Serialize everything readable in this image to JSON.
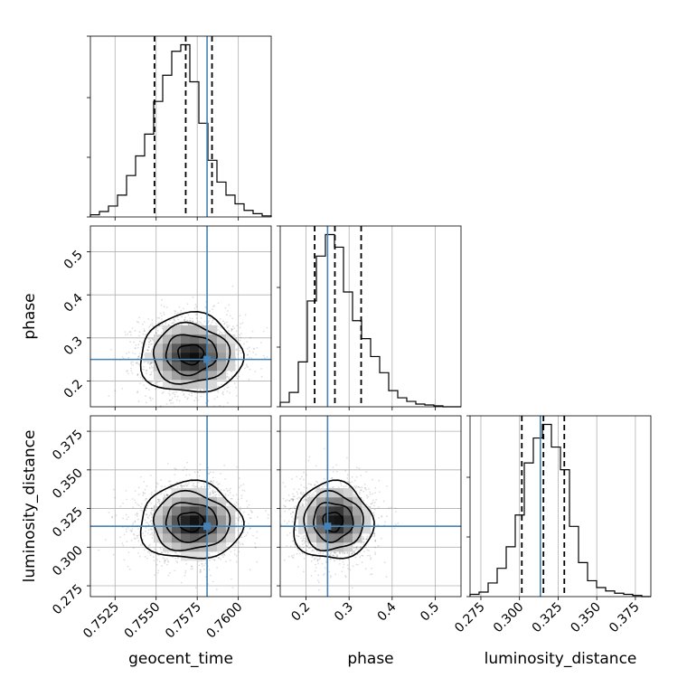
{
  "chart_data": {
    "type": "corner",
    "parameters": [
      "geocent_time",
      "phase",
      "luminosity_distance"
    ],
    "labels": {
      "geocent_time": "geocent_time",
      "phase": "phase",
      "luminosity_distance": "luminosity_distance"
    },
    "ranges": {
      "geocent_time": [
        0.751,
        0.762
      ],
      "phase": [
        0.14,
        0.56
      ],
      "luminosity_distance": [
        0.268,
        0.385
      ]
    },
    "x_ticks": {
      "geocent_time": [
        "0.7525",
        "0.7550",
        "0.7575",
        "0.7600"
      ],
      "phase": [
        "0.2",
        "0.3",
        "0.4",
        "0.5"
      ],
      "luminosity_distance": [
        "0.275",
        "0.300",
        "0.325",
        "0.350",
        "0.375"
      ]
    },
    "y_ticks": {
      "phase": [
        "0.2",
        "0.3",
        "0.4",
        "0.5"
      ],
      "luminosity_distance": [
        "0.275",
        "0.300",
        "0.325",
        "0.350",
        "0.375"
      ]
    },
    "truths": {
      "geocent_time": 0.7581,
      "phase": 0.25,
      "luminosity_distance": 0.3135
    },
    "quantiles": {
      "geocent_time": [
        0.7549,
        0.7568,
        0.7584
      ],
      "phase": [
        0.22,
        0.267,
        0.328
      ],
      "luminosity_distance": [
        0.3015,
        0.3155,
        0.329
      ]
    },
    "histograms": {
      "geocent_time": {
        "bin_edges": [
          0.751,
          0.75155,
          0.7521,
          0.75265,
          0.7532,
          0.75375,
          0.7543,
          0.75485,
          0.7554,
          0.75595,
          0.7565,
          0.75705,
          0.7576,
          0.75815,
          0.7587,
          0.75925,
          0.7598,
          0.76035,
          0.7609,
          0.76145,
          0.762
        ],
        "counts": [
          2,
          5,
          10,
          20,
          38,
          56,
          76,
          106,
          130,
          152,
          158,
          124,
          86,
          52,
          32,
          20,
          12,
          6,
          3,
          1
        ]
      },
      "phase": {
        "bin_edges": [
          0.14,
          0.161,
          0.182,
          0.203,
          0.224,
          0.245,
          0.266,
          0.287,
          0.308,
          0.329,
          0.35,
          0.371,
          0.392,
          0.413,
          0.434,
          0.455,
          0.476,
          0.497,
          0.518,
          0.539,
          0.56
        ],
        "counts": [
          5,
          16,
          50,
          118,
          168,
          192,
          178,
          128,
          96,
          76,
          56,
          38,
          18,
          10,
          6,
          3,
          2,
          1,
          0,
          0
        ],
        "counts_visible_max": 192
      },
      "luminosity_distance": {
        "bin_edges": [
          0.268,
          0.27385,
          0.2797,
          0.28555,
          0.2914,
          0.29725,
          0.3031,
          0.30895,
          0.3148,
          0.32065,
          0.3265,
          0.33235,
          0.3382,
          0.34405,
          0.3499,
          0.35575,
          0.3616,
          0.36745,
          0.3733,
          0.37915,
          0.385
        ],
        "counts": [
          2,
          4,
          12,
          25,
          44,
          72,
          118,
          140,
          152,
          132,
          112,
          62,
          30,
          14,
          8,
          5,
          3,
          2,
          1,
          0
        ]
      }
    },
    "joint": [
      {
        "x": "geocent_time",
        "y": "phase",
        "center": [
          0.7571,
          0.262
        ],
        "sigma": [
          0.00155,
          0.046
        ],
        "density_peak": [
          0.7572,
          0.258
        ]
      },
      {
        "x": "geocent_time",
        "y": "luminosity_distance",
        "center": [
          0.7571,
          0.3165
        ],
        "sigma": [
          0.00155,
          0.0125
        ],
        "density_peak": [
          0.7573,
          0.3155
        ]
      },
      {
        "x": "phase",
        "y": "luminosity_distance",
        "center": [
          0.262,
          0.3165
        ],
        "sigma": [
          0.046,
          0.0125
        ],
        "density_peak": [
          0.268,
          0.3175
        ]
      }
    ],
    "contour_levels_sigma": [
      0.5,
      1.0,
      1.5,
      2.0
    ],
    "grid": true,
    "colors": {
      "truth": "#4682b4",
      "histogram": "#000000",
      "quantile": "#000000",
      "grid": "#b0b0b0",
      "points": "#000000"
    }
  }
}
